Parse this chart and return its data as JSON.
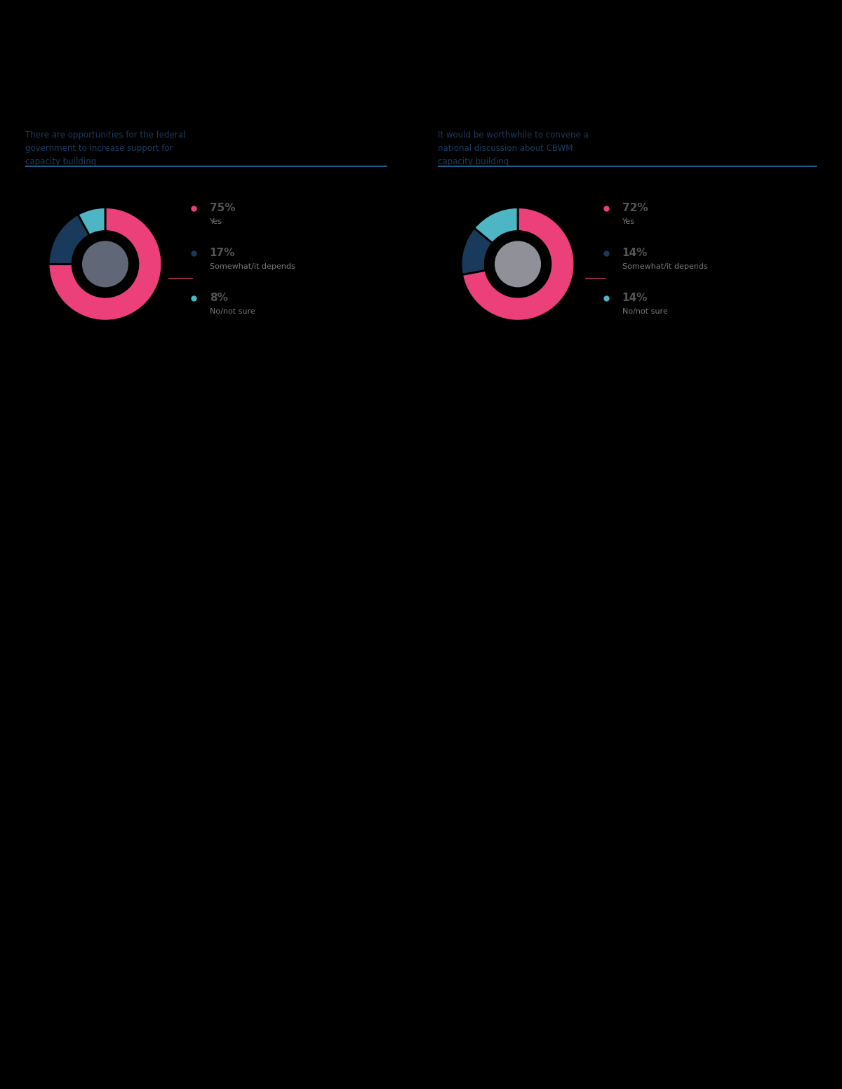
{
  "background_color": "#000000",
  "panel_bg": "#0a0a0a",
  "title1": "There are opportunities for the federal\ngovernment to increase support for\ncapacity building",
  "title2": "It would be worthwhile to convene a\nnational discussion about CBWM\ncapacity building",
  "title_color": "#1e3a5f",
  "divider_color": "#1e5c8a",
  "chart1_values": [
    75,
    17,
    8
  ],
  "chart2_values": [
    72,
    14,
    14
  ],
  "chart1_pct": [
    "75%",
    "17%",
    "8%"
  ],
  "chart2_pct": [
    "72%",
    "14%",
    "14%"
  ],
  "labels": [
    "Yes",
    "Somewhat/it depends",
    "No/not sure"
  ],
  "colors_chart1": [
    "#EC407A",
    "#1a3a5c",
    "#4db6c4"
  ],
  "colors_chart2": [
    "#EC407A",
    "#1a3a5c",
    "#4db6c4"
  ],
  "pct_color": "#555555",
  "label_color": "#777777",
  "icon1_color": "#888899",
  "icon2_color": "#aaaaaa",
  "line_color": "#EC407A",
  "donut_edge_color": "#000000",
  "title_fontsize": 8.5,
  "pct_fontsize": 11,
  "label_fontsize": 8
}
